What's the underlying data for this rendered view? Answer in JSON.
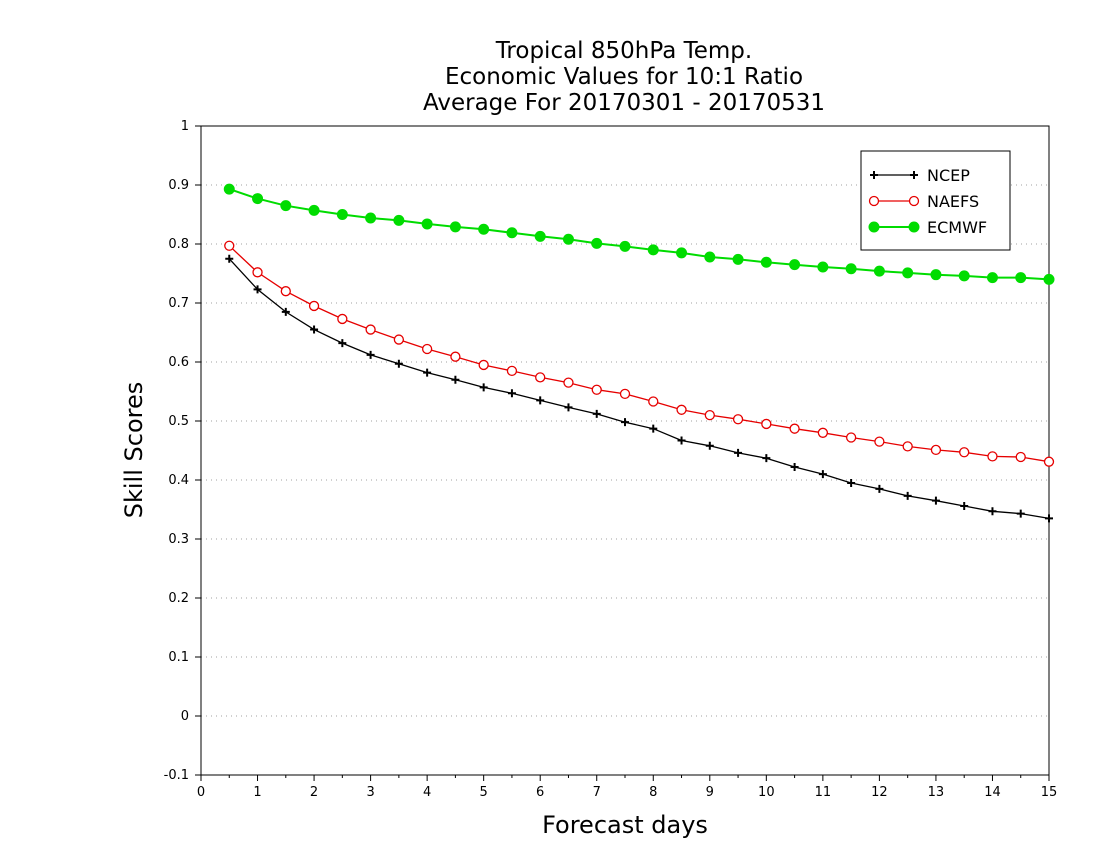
{
  "chart_data": {
    "type": "line",
    "title": [
      "Tropical 850hPa Temp.",
      "Economic Values for 10:1 Ratio",
      "Average For 20170301 - 20170531"
    ],
    "xlabel": "Forecast days",
    "ylabel": "Skill Scores",
    "xlim": [
      0,
      15
    ],
    "ylim": [
      -0.1,
      1
    ],
    "xticks": [
      0,
      1,
      2,
      3,
      4,
      5,
      6,
      7,
      8,
      9,
      10,
      11,
      12,
      13,
      14,
      15
    ],
    "xtick_labels": [
      "0",
      "1",
      "2",
      "3",
      "4",
      "5",
      "6",
      "7",
      "8",
      "9",
      "10",
      "11",
      "12",
      "13",
      "14",
      "15"
    ],
    "yticks": [
      -0.1,
      0,
      0.1,
      0.2,
      0.3,
      0.4,
      0.5,
      0.6,
      0.7,
      0.8,
      0.9,
      1
    ],
    "ytick_labels": [
      "-0.1",
      "0",
      "0.1",
      "0.2",
      "0.3",
      "0.4",
      "0.5",
      "0.6",
      "0.7",
      "0.8",
      "0.9",
      "1"
    ],
    "grid": "horizontal dotted",
    "legend_position": "top-right",
    "x": [
      0.5,
      1,
      1.5,
      2,
      2.5,
      3,
      3.5,
      4,
      4.5,
      5,
      5.5,
      6,
      6.5,
      7,
      7.5,
      8,
      8.5,
      9,
      9.5,
      10,
      10.5,
      11,
      11.5,
      12,
      12.5,
      13,
      13.5,
      14,
      14.5,
      15
    ],
    "series": [
      {
        "name": "NCEP",
        "color": "#000000",
        "marker": "plus",
        "values": [
          0.775,
          0.723,
          0.685,
          0.655,
          0.632,
          0.612,
          0.597,
          0.582,
          0.57,
          0.557,
          0.547,
          0.535,
          0.523,
          0.512,
          0.498,
          0.487,
          0.467,
          0.458,
          0.446,
          0.437,
          0.422,
          0.41,
          0.395,
          0.385,
          0.373,
          0.365,
          0.356,
          0.347,
          0.343,
          0.335
        ]
      },
      {
        "name": "NAEFS",
        "color": "#e60000",
        "marker": "open-circle",
        "values": [
          0.797,
          0.752,
          0.72,
          0.695,
          0.673,
          0.655,
          0.638,
          0.622,
          0.609,
          0.595,
          0.585,
          0.574,
          0.565,
          0.553,
          0.546,
          0.533,
          0.519,
          0.51,
          0.503,
          0.495,
          0.487,
          0.48,
          0.472,
          0.465,
          0.457,
          0.451,
          0.447,
          0.44,
          0.439,
          0.431
        ]
      },
      {
        "name": "ECMWF",
        "color": "#00dc00",
        "marker": "filled-circle",
        "values": [
          0.893,
          0.877,
          0.865,
          0.857,
          0.85,
          0.844,
          0.84,
          0.834,
          0.829,
          0.825,
          0.819,
          0.813,
          0.808,
          0.801,
          0.796,
          0.79,
          0.785,
          0.778,
          0.774,
          0.769,
          0.765,
          0.761,
          0.758,
          0.754,
          0.751,
          0.748,
          0.746,
          0.743,
          0.743,
          0.74
        ]
      }
    ]
  }
}
